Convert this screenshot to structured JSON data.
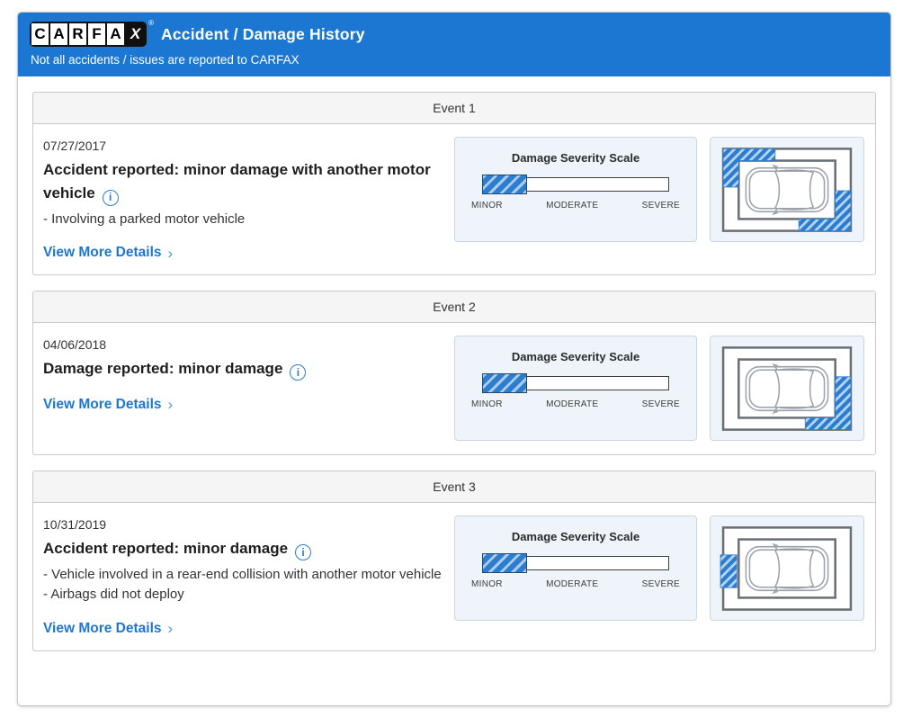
{
  "header": {
    "logo_letters": [
      "C",
      "A",
      "R",
      "F",
      "A",
      "X"
    ],
    "title": "Accident / Damage History",
    "subtitle": "Not all accidents / issues are reported to CARFAX"
  },
  "severity_scale": {
    "title": "Damage Severity Scale",
    "labels": [
      "MINOR",
      "MODERATE",
      "SEVERE"
    ]
  },
  "ui": {
    "chevron": "›",
    "bullet": "-",
    "info_glyph": "i",
    "registered": "®"
  },
  "colors": {
    "header_blue": "#1c77d2",
    "link_blue": "#1c77d2",
    "hatch_blue": "#2e7ccd",
    "severity_fill_border": "#1e4976",
    "panel_bg": "#eef4f9"
  },
  "events": [
    {
      "header": "Event 1",
      "date": "07/27/2017",
      "title": "Accident reported: minor damage with another motor vehicle",
      "details": [
        "Involving a parked motor vehicle"
      ],
      "link_label": "View More Details",
      "severity": {
        "level": "MINOR",
        "fill_percent": 24
      },
      "damage_regions": [
        "top-left-corner",
        "bottom-right-corner"
      ]
    },
    {
      "header": "Event 2",
      "date": "04/06/2018",
      "title": "Damage reported: minor damage",
      "details": [],
      "link_label": "View More Details",
      "severity": {
        "level": "MINOR",
        "fill_percent": 24
      },
      "damage_regions": [
        "right-side-bottom-corner"
      ]
    },
    {
      "header": "Event 3",
      "date": "10/31/2019",
      "title": "Accident reported: minor damage",
      "details": [
        "Vehicle involved in a rear-end collision with another motor vehicle",
        "Airbags did not deploy"
      ],
      "link_label": "View More Details",
      "severity": {
        "level": "MINOR",
        "fill_percent": 24
      },
      "damage_regions": [
        "left-side-middle"
      ]
    }
  ]
}
